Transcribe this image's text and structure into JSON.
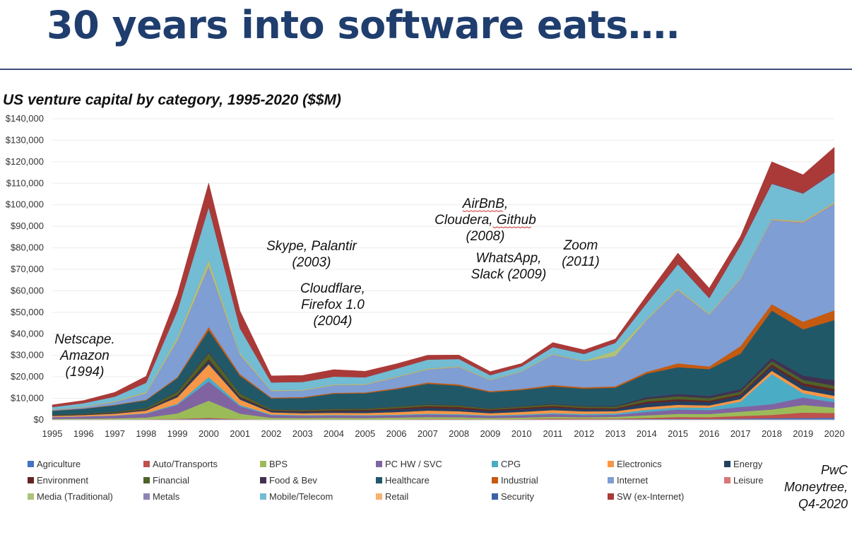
{
  "slide_title": "30 years into software eats….",
  "source_note": [
    "PwC",
    "Moneytree,",
    "Q4-2020"
  ],
  "chart_data": {
    "type": "area",
    "stacked": true,
    "title": "US venture capital by category, 1995-2020 ($$M)",
    "xlabel": "",
    "ylabel": "",
    "ylim": [
      0,
      140000
    ],
    "y_ticks": [
      "$0",
      "$10,000",
      "$20,000",
      "$30,000",
      "$40,000",
      "$50,000",
      "$60,000",
      "$70,000",
      "$80,000",
      "$90,000",
      "$100,000",
      "$110,000",
      "$120,000",
      "$130,000",
      "$140,000"
    ],
    "x": [
      "1995",
      "1996",
      "1997",
      "1998",
      "1999",
      "2000",
      "2001",
      "2002",
      "2003",
      "2004",
      "2005",
      "2006",
      "2007",
      "2008",
      "2009",
      "2010",
      "2011",
      "2012",
      "2013",
      "2014",
      "2015",
      "2016",
      "2017",
      "2018",
      "2019",
      "2020"
    ],
    "legend_position": "bottom",
    "series": [
      {
        "name": "Agriculture",
        "color": "#4472c4",
        "values": [
          100,
          100,
          150,
          200,
          300,
          500,
          200,
          100,
          100,
          100,
          100,
          150,
          200,
          200,
          150,
          200,
          250,
          250,
          300,
          400,
          500,
          400,
          600,
          800,
          900,
          1000
        ]
      },
      {
        "name": "Auto/Transports",
        "color": "#c0504d",
        "values": [
          50,
          50,
          80,
          100,
          200,
          400,
          150,
          100,
          100,
          100,
          100,
          150,
          200,
          200,
          150,
          200,
          400,
          300,
          300,
          500,
          800,
          800,
          1200,
          1500,
          2500,
          2200
        ]
      },
      {
        "name": "BPS",
        "color": "#9bbb59",
        "values": [
          300,
          400,
          500,
          800,
          2500,
          8000,
          2500,
          800,
          700,
          800,
          700,
          800,
          900,
          800,
          600,
          700,
          800,
          700,
          800,
          1200,
          1500,
          1500,
          2000,
          2500,
          3500,
          2500
        ]
      },
      {
        "name": "PC HW / SVC",
        "color": "#8064a2",
        "values": [
          800,
          1000,
          1200,
          1800,
          4000,
          9000,
          3500,
          1200,
          1000,
          1000,
          1000,
          1000,
          1200,
          1100,
          900,
          1000,
          1200,
          1000,
          1000,
          1600,
          2000,
          1800,
          2200,
          2500,
          3500,
          2500
        ]
      },
      {
        "name": "CPG",
        "color": "#4bacc6",
        "values": [
          100,
          100,
          150,
          200,
          500,
          2000,
          600,
          300,
          300,
          300,
          300,
          300,
          400,
          400,
          300,
          400,
          500,
          500,
          600,
          1000,
          1000,
          1200,
          2500,
          14000,
          2000,
          1500
        ]
      },
      {
        "name": "Electronics",
        "color": "#f79646",
        "values": [
          500,
          600,
          800,
          1200,
          3000,
          6000,
          2500,
          1000,
          900,
          1000,
          1000,
          1200,
          1400,
          1300,
          1000,
          1200,
          1400,
          1200,
          1000,
          1200,
          1200,
          1000,
          1200,
          1500,
          1500,
          1500
        ]
      },
      {
        "name": "Energy",
        "color": "#243f60",
        "values": [
          200,
          250,
          300,
          400,
          700,
          1500,
          800,
          600,
          700,
          800,
          900,
          1200,
          1200,
          1200,
          1000,
          1200,
          1200,
          1000,
          900,
          1800,
          1800,
          1500,
          1500,
          2000,
          2000,
          2000
        ]
      },
      {
        "name": "Environment",
        "color": "#632523",
        "values": [
          100,
          100,
          150,
          200,
          400,
          800,
          500,
          300,
          300,
          400,
          500,
          600,
          800,
          800,
          600,
          700,
          700,
          600,
          500,
          800,
          800,
          700,
          700,
          1000,
          1200,
          1200
        ]
      },
      {
        "name": "Financial",
        "color": "#4f6228",
        "values": [
          200,
          300,
          400,
          600,
          1500,
          3000,
          1500,
          500,
          500,
          600,
          600,
          700,
          800,
          700,
          500,
          600,
          800,
          700,
          700,
          1200,
          1400,
          1200,
          1200,
          1500,
          1500,
          1500
        ]
      },
      {
        "name": "Food & Bev",
        "color": "#403152",
        "values": [
          50,
          50,
          80,
          100,
          300,
          500,
          200,
          100,
          100,
          100,
          150,
          150,
          200,
          200,
          150,
          200,
          300,
          300,
          400,
          800,
          1000,
          1000,
          1200,
          1500,
          2000,
          2500
        ]
      },
      {
        "name": "Healthcare",
        "color": "#215868",
        "values": [
          1800,
          2200,
          3000,
          3500,
          6000,
          10000,
          8000,
          5000,
          5500,
          7000,
          7000,
          8000,
          9500,
          9000,
          7500,
          7500,
          8000,
          8000,
          8500,
          11000,
          12500,
          12500,
          16500,
          22000,
          21500,
          28000
        ]
      },
      {
        "name": "Industrial",
        "color": "#c55a11",
        "values": [
          100,
          150,
          200,
          300,
          500,
          1500,
          800,
          400,
          400,
          400,
          400,
          500,
          600,
          600,
          500,
          500,
          700,
          600,
          600,
          800,
          1800,
          1200,
          3500,
          3000,
          3500,
          4500
        ]
      },
      {
        "name": "Internet",
        "color": "#7f9ed3",
        "values": [
          400,
          600,
          1300,
          3000,
          17000,
          28000,
          9000,
          3000,
          3000,
          3500,
          3500,
          5000,
          6000,
          8000,
          5000,
          8000,
          14000,
          12000,
          14000,
          24000,
          34000,
          24000,
          31000,
          39000,
          46000,
          49500
        ]
      },
      {
        "name": "Leisure",
        "color": "#d87678",
        "values": [
          30,
          30,
          40,
          50,
          150,
          300,
          100,
          50,
          50,
          50,
          60,
          70,
          80,
          70,
          50,
          60,
          80,
          70,
          60,
          100,
          150,
          120,
          150,
          200,
          250,
          250
        ]
      },
      {
        "name": "Media (Traditional)",
        "color": "#adc27a",
        "values": [
          200,
          300,
          400,
          700,
          1500,
          3000,
          1000,
          400,
          400,
          400,
          400,
          400,
          400,
          400,
          300,
          300,
          400,
          300,
          2500,
          600,
          700,
          500,
          500,
          500,
          600,
          600
        ]
      },
      {
        "name": "Metals",
        "color": "#9183b7",
        "values": [
          10,
          10,
          10,
          20,
          50,
          100,
          50,
          20,
          20,
          20,
          20,
          30,
          30,
          30,
          20,
          20,
          30,
          30,
          30,
          50,
          50,
          50,
          50,
          60,
          60,
          60
        ]
      },
      {
        "name": "Mobile/Telecom",
        "color": "#72bcd4",
        "values": [
          1000,
          1500,
          2000,
          4000,
          12000,
          24000,
          11000,
          3500,
          3500,
          3500,
          3000,
          3500,
          4000,
          3200,
          2000,
          2000,
          3000,
          3000,
          3500,
          7000,
          11000,
          7000,
          15000,
          16000,
          12500,
          13500
        ]
      },
      {
        "name": "Retail",
        "color": "#f9b16f",
        "values": [
          20,
          20,
          30,
          50,
          100,
          200,
          100,
          30,
          30,
          30,
          30,
          40,
          50,
          50,
          30,
          40,
          50,
          50,
          50,
          80,
          100,
          80,
          100,
          150,
          150,
          150
        ]
      },
      {
        "name": "Security",
        "color": "#3a62a8",
        "values": [
          20,
          30,
          40,
          60,
          150,
          300,
          150,
          60,
          60,
          60,
          60,
          80,
          100,
          100,
          80,
          100,
          150,
          150,
          150,
          200,
          250,
          200,
          250,
          300,
          300,
          300
        ]
      },
      {
        "name": "SW (ex-Internet)",
        "color": "#a93a38",
        "values": [
          1000,
          1200,
          2000,
          3000,
          7500,
          11000,
          8000,
          3000,
          3000,
          3200,
          2800,
          2200,
          2000,
          1800,
          1600,
          1300,
          2000,
          1800,
          1700,
          3500,
          5000,
          4500,
          4000,
          10000,
          8500,
          11500
        ]
      }
    ],
    "annotations": [
      {
        "lines": [
          "Netscape.",
          "Amazon",
          "(1994)"
        ],
        "underline": []
      },
      {
        "lines": [
          "Skype, Palantir",
          "(2003)"
        ],
        "underline": []
      },
      {
        "lines": [
          "Cloudflare,",
          "Firefox 1.0",
          "(2004)"
        ],
        "underline": []
      },
      {
        "lines": [
          "AirBnB,",
          "Cloudera, Github",
          "(2008)"
        ],
        "underline": [
          "AirBnB",
          "Github"
        ]
      },
      {
        "lines": [
          "WhatsApp,",
          "Slack (2009)"
        ],
        "underline": []
      },
      {
        "lines": [
          "Zoom",
          "(2011)"
        ],
        "underline": []
      }
    ]
  }
}
